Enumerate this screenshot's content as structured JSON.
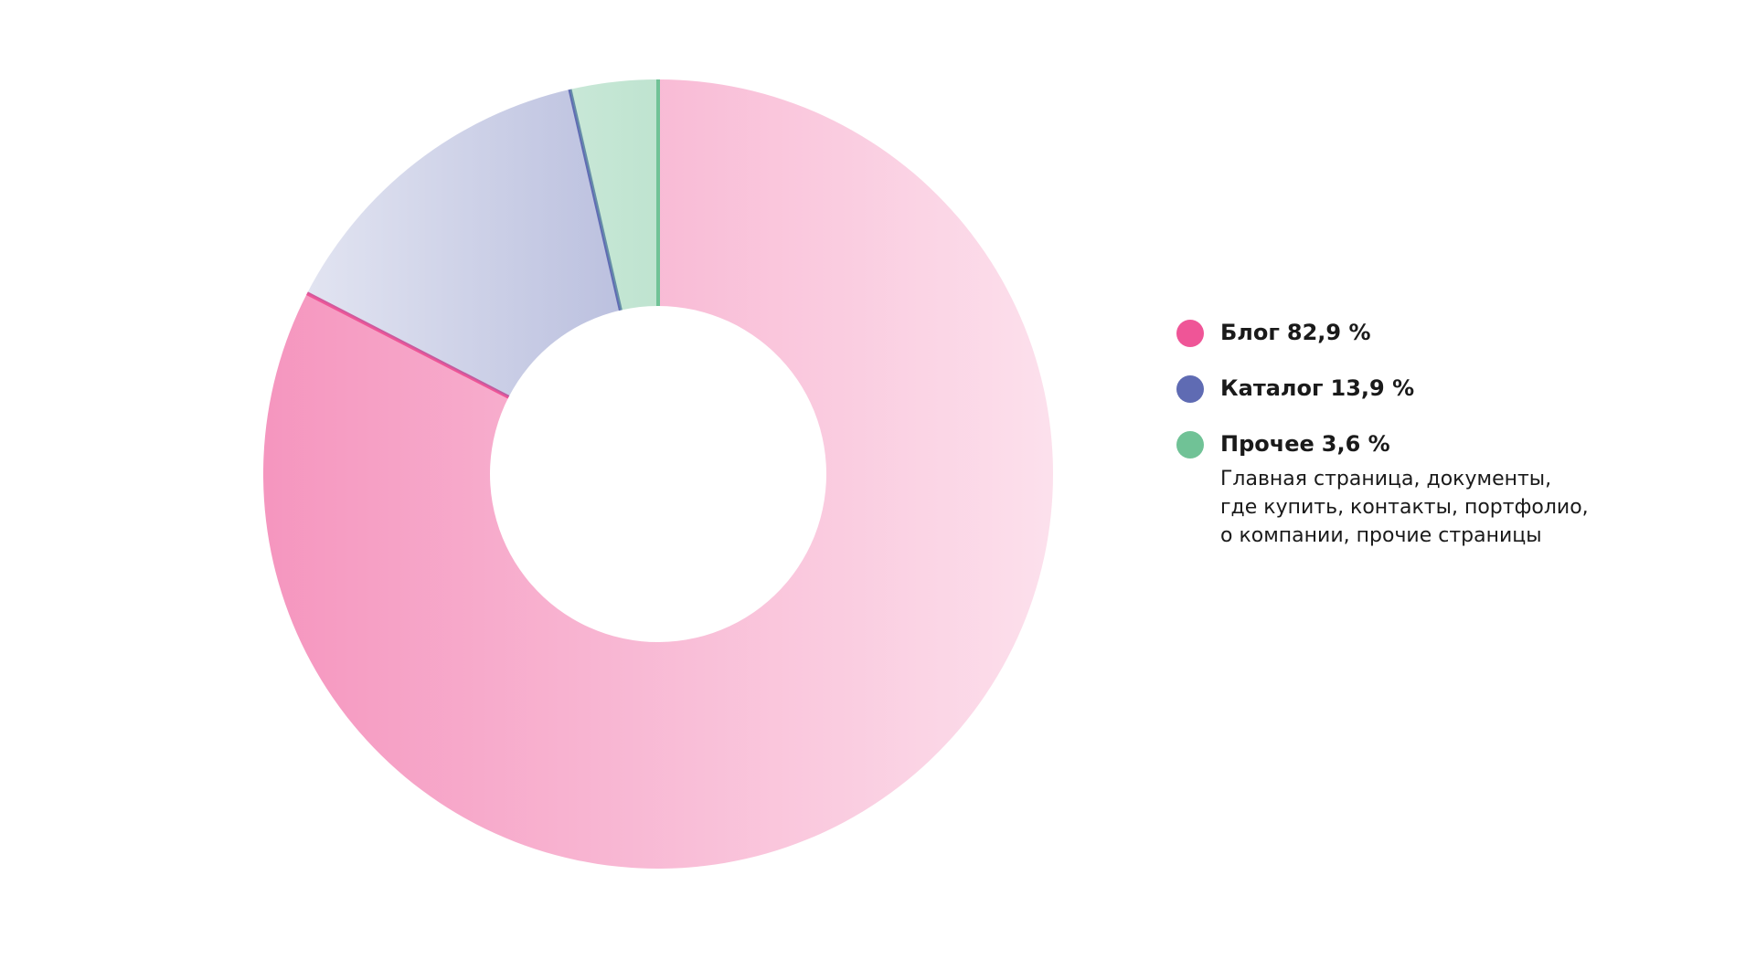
{
  "chart_data": {
    "type": "pie",
    "categories": [
      "Блог",
      "Каталог",
      "Прочее"
    ],
    "values": [
      82.9,
      13.9,
      3.6
    ],
    "value_labels": [
      "82,9 %",
      "13,9 %",
      "3,6 %"
    ],
    "colors": [
      "#ef5597",
      "#5f6bb3",
      "#70c296"
    ],
    "annotation": [
      "Главная страница, документы,",
      "где купить, контакты, портфолио,",
      "о компании, прочие страницы"
    ]
  }
}
